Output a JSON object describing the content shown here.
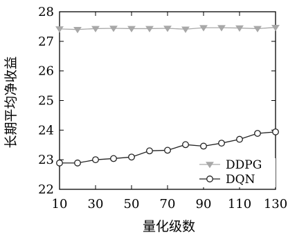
{
  "chart_data": {
    "type": "line",
    "xlabel": "量化级数",
    "ylabel": "长期平均净收益",
    "x": [
      10,
      20,
      30,
      40,
      50,
      60,
      70,
      80,
      90,
      100,
      110,
      120,
      130
    ],
    "xlim": [
      10,
      130
    ],
    "ylim": [
      22,
      28
    ],
    "xticks": [
      10,
      30,
      50,
      70,
      90,
      110,
      130
    ],
    "yticks": [
      22,
      23,
      24,
      25,
      26,
      27,
      28
    ],
    "grid": false,
    "legend_position": "bottom-right",
    "series": [
      {
        "name": "DDPG",
        "marker": "triangle-down",
        "color": "#a8a8a8",
        "values": [
          27.42,
          27.4,
          27.43,
          27.44,
          27.43,
          27.43,
          27.44,
          27.41,
          27.46,
          27.46,
          27.45,
          27.43,
          27.47
        ]
      },
      {
        "name": "DQN",
        "marker": "circle",
        "color": "#222222",
        "values": [
          22.89,
          22.89,
          23.0,
          23.04,
          23.09,
          23.3,
          23.32,
          23.51,
          23.46,
          23.56,
          23.69,
          23.89,
          23.94
        ]
      }
    ]
  }
}
